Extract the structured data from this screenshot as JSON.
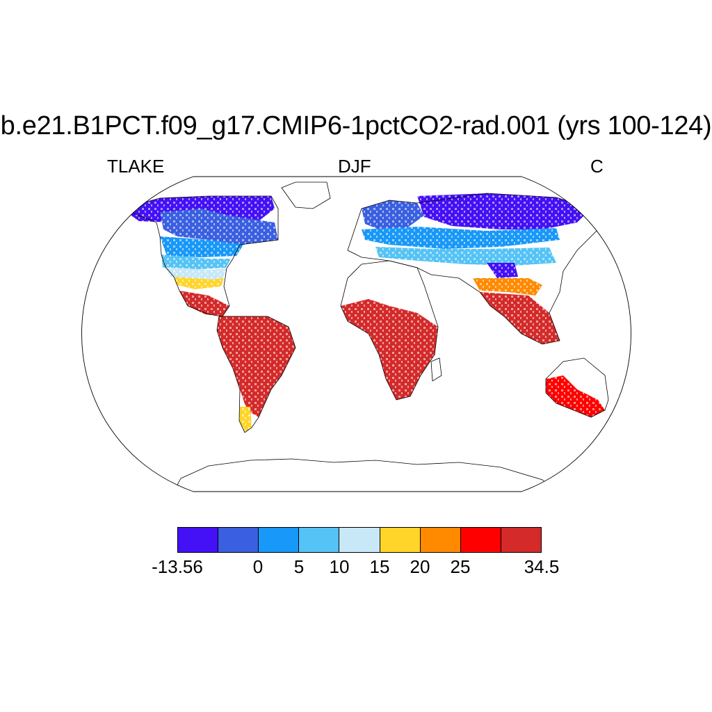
{
  "title": "b.e21.B1PCT.f09_g17.CMIP6-1pctCO2-rad.001 (yrs 100-124)",
  "left_label": "TLAKE",
  "center_label": "DJF",
  "right_label": "C",
  "colorbar": {
    "colors": [
      "#4410f5",
      "#3a5fe0",
      "#1898f8",
      "#55c3f5",
      "#c8e8f8",
      "#ffd52a",
      "#ff8a00",
      "#ff0000",
      "#d42a2a"
    ],
    "labels": [
      "-13.56",
      "0",
      "5",
      "10",
      "15",
      "20",
      "25",
      "34.5"
    ]
  },
  "map_regions": [
    {
      "name": "north-canada",
      "color": "#4410f5"
    },
    {
      "name": "hudson-region",
      "color": "#3a5fe0"
    },
    {
      "name": "mid-north-america",
      "color": "#1898f8"
    },
    {
      "name": "us-band",
      "color": "#55c3f5"
    },
    {
      "name": "us-south",
      "color": "#c8e8f8"
    },
    {
      "name": "gulf-coast",
      "color": "#ffd52a"
    },
    {
      "name": "central-america",
      "color": "#d42a2a"
    },
    {
      "name": "south-america",
      "color": "#d42a2a"
    },
    {
      "name": "patagonia",
      "color": "#ffd52a"
    },
    {
      "name": "scandinavia",
      "color": "#3a5fe0"
    },
    {
      "name": "siberia",
      "color": "#4410f5"
    },
    {
      "name": "europe-asia-band",
      "color": "#1898f8"
    },
    {
      "name": "central-asia",
      "color": "#55c3f5"
    },
    {
      "name": "tibet",
      "color": "#4410f5"
    },
    {
      "name": "south-asia",
      "color": "#ff8a00"
    },
    {
      "name": "india",
      "color": "#d42a2a"
    },
    {
      "name": "africa",
      "color": "#d42a2a"
    },
    {
      "name": "australia",
      "color": "#ff0000"
    },
    {
      "name": "new-zealand",
      "color": "#ffd52a"
    }
  ]
}
